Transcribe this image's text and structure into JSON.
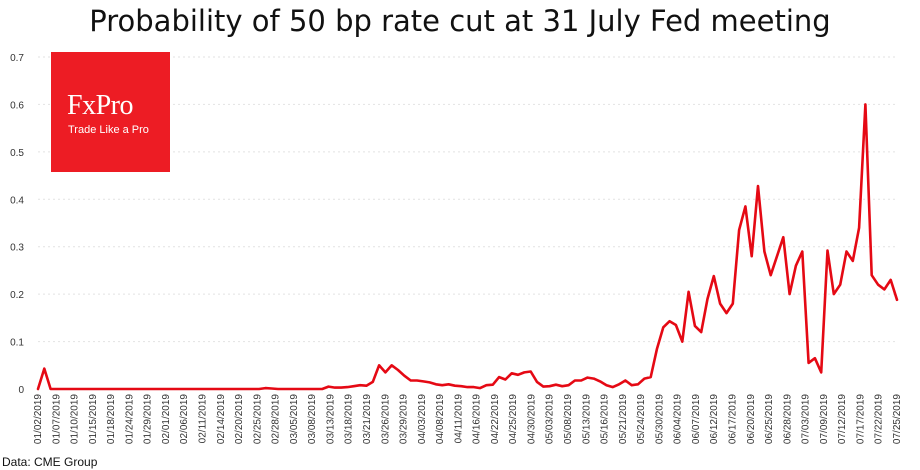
{
  "chart_data": {
    "type": "line",
    "title": "Probability of 50 bp rate cut at 31 July Fed meeting",
    "xlabel": "",
    "ylabel": "",
    "ylim": [
      0,
      0.7
    ],
    "yticks": [
      "0",
      "0.1",
      "0.2",
      "0.3",
      "0.4",
      "0.5",
      "0.6",
      "0.7"
    ],
    "grid": true,
    "legend": "none",
    "x_tick_labels": [
      "01/02/2019",
      "01/07/2019",
      "01/10/2019",
      "01/15/2019",
      "01/18/2019",
      "01/24/2019",
      "01/29/2019",
      "02/01/2019",
      "02/06/2019",
      "02/11/2019",
      "02/14/2019",
      "02/20/2019",
      "02/25/2019",
      "02/28/2019",
      "03/05/2019",
      "03/08/2019",
      "03/13/2019",
      "03/18/2019",
      "03/21/2019",
      "03/26/2019",
      "03/29/2019",
      "04/03/2019",
      "04/08/2019",
      "04/11/2019",
      "04/16/2019",
      "04/22/2019",
      "04/25/2019",
      "04/30/2019",
      "05/03/2019",
      "05/08/2019",
      "05/13/2019",
      "05/16/2019",
      "05/21/2019",
      "05/24/2019",
      "05/30/2019",
      "06/04/2019",
      "06/07/2019",
      "06/12/2019",
      "06/17/2019",
      "06/20/2019",
      "06/25/2019",
      "06/28/2019",
      "07/03/2019",
      "07/09/2019",
      "07/12/2019",
      "07/17/2019",
      "07/22/2019",
      "07/25/2019"
    ],
    "series": [
      {
        "name": "Probability of 50 bp rate cut",
        "color": "#e50914",
        "values": [
          0.0,
          0.043,
          0.0,
          0.0,
          0.0,
          0.0,
          0.0,
          0.0,
          0.0,
          0.0,
          0.0,
          0.0,
          0.0,
          0.0,
          0.0,
          0.0,
          0.0,
          0.0,
          0.0,
          0.0,
          0.0,
          0.0,
          0.0,
          0.0,
          0.0,
          0.0,
          0.0,
          0.0,
          0.0,
          0.0,
          0.0,
          0.0,
          0.0,
          0.0,
          0.0,
          0.0,
          0.002,
          0.001,
          0.0,
          0.0,
          0.0,
          0.0,
          0.0,
          0.0,
          0.0,
          0.0,
          0.005,
          0.003,
          0.003,
          0.004,
          0.006,
          0.008,
          0.007,
          0.015,
          0.05,
          0.035,
          0.05,
          0.04,
          0.028,
          0.018,
          0.018,
          0.016,
          0.014,
          0.01,
          0.008,
          0.01,
          0.007,
          0.006,
          0.004,
          0.004,
          0.002,
          0.008,
          0.009,
          0.025,
          0.02,
          0.033,
          0.03,
          0.035,
          0.037,
          0.015,
          0.005,
          0.006,
          0.009,
          0.006,
          0.008,
          0.018,
          0.018,
          0.024,
          0.022,
          0.016,
          0.008,
          0.004,
          0.01,
          0.018,
          0.008,
          0.01,
          0.022,
          0.025,
          0.085,
          0.13,
          0.143,
          0.135,
          0.1,
          0.205,
          0.133,
          0.12,
          0.19,
          0.238,
          0.18,
          0.16,
          0.18,
          0.335,
          0.385,
          0.28,
          0.428,
          0.29,
          0.24,
          0.28,
          0.32,
          0.2,
          0.26,
          0.29,
          0.055,
          0.065,
          0.035,
          0.292,
          0.2,
          0.22,
          0.29,
          0.27,
          0.34,
          0.6,
          0.24,
          0.22,
          0.21,
          0.23,
          0.188
        ]
      }
    ]
  },
  "logo": {
    "name": "FxPro",
    "tagline": "Trade Like a Pro"
  },
  "source": "Data: CME Group"
}
